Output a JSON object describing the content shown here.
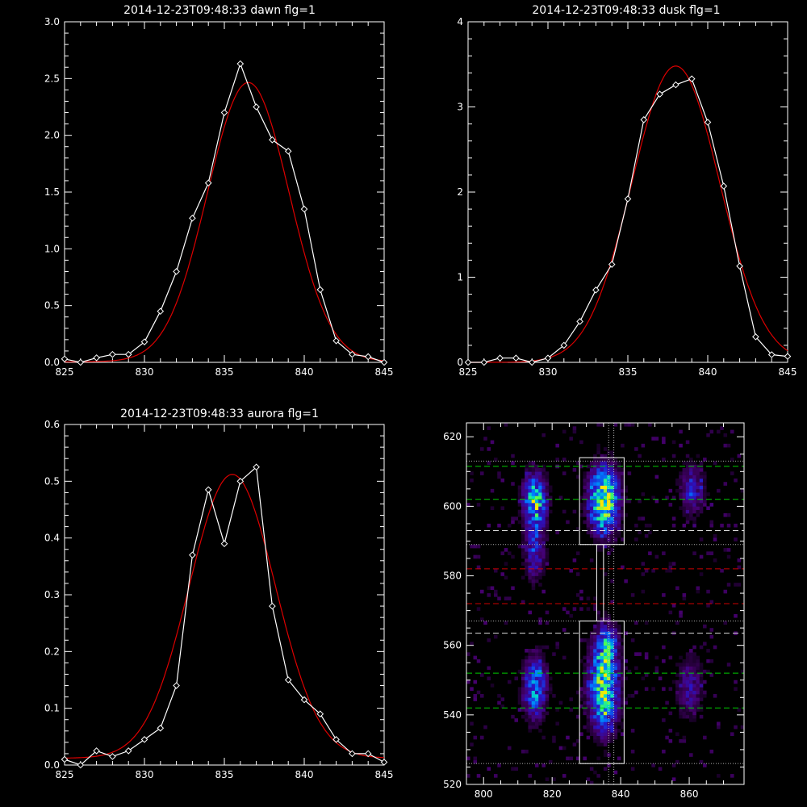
{
  "colors": {
    "background": "#000000",
    "axes": "#ffffff",
    "data": "#ffffff",
    "fit": "#dd0000",
    "green_line": "#00cc00",
    "red_line": "#cc0000"
  },
  "chart_data": [
    {
      "type": "line",
      "title": "2014-12-23T09:48:33 dawn flg=1",
      "xlim": [
        825,
        845
      ],
      "ylim": [
        0,
        3.0
      ],
      "xticks": [
        "825",
        "830",
        "835",
        "840",
        "845"
      ],
      "yticks": [
        "0.0",
        "0.5",
        "1.0",
        "1.5",
        "2.0",
        "2.5",
        "3.0"
      ],
      "series": [
        {
          "role": "data",
          "marker": "diamond",
          "x": [
            825,
            826,
            827,
            828,
            829,
            830,
            831,
            832,
            833,
            834,
            835,
            836,
            837,
            838,
            839,
            840,
            841,
            842,
            843,
            844,
            845
          ],
          "y": [
            0.03,
            0.0,
            0.04,
            0.07,
            0.07,
            0.18,
            0.45,
            0.8,
            1.27,
            1.58,
            2.2,
            2.63,
            2.25,
            1.96,
            1.86,
            1.35,
            0.64,
            0.19,
            0.07,
            0.05,
            0.0
          ]
        },
        {
          "role": "fit",
          "x0": 836.5,
          "sigma": 2.55,
          "amplitude": 2.46,
          "baseline": 0.005
        }
      ]
    },
    {
      "type": "line",
      "title": "2014-12-23T09:48:33 dusk flg=1",
      "xlim": [
        825,
        845
      ],
      "ylim": [
        0,
        4
      ],
      "xticks": [
        "825",
        "830",
        "835",
        "840",
        "845"
      ],
      "yticks": [
        "0",
        "1",
        "2",
        "3",
        "4"
      ],
      "series": [
        {
          "role": "data",
          "marker": "diamond",
          "x": [
            825,
            826,
            827,
            828,
            829,
            830,
            831,
            832,
            833,
            834,
            835,
            836,
            837,
            838,
            839,
            840,
            841,
            842,
            843,
            844,
            845
          ],
          "y": [
            0.0,
            0.0,
            0.05,
            0.05,
            0.0,
            0.05,
            0.2,
            0.48,
            0.85,
            1.15,
            1.92,
            2.85,
            3.15,
            3.26,
            3.33,
            2.82,
            2.07,
            1.13,
            0.3,
            0.09,
            0.07
          ]
        },
        {
          "role": "fit",
          "x0": 838.0,
          "sigma": 2.75,
          "amplitude": 3.48,
          "baseline": 0.0
        }
      ]
    },
    {
      "type": "line",
      "title": "2014-12-23T09:48:33 aurora flg=1",
      "xlim": [
        825,
        845
      ],
      "ylim": [
        0,
        0.6
      ],
      "xticks": [
        "825",
        "830",
        "835",
        "840",
        "845"
      ],
      "yticks": [
        "0.0",
        "0.1",
        "0.2",
        "0.3",
        "0.4",
        "0.5",
        "0.6"
      ],
      "series": [
        {
          "role": "data",
          "marker": "diamond",
          "x": [
            825,
            826,
            827,
            828,
            829,
            830,
            831,
            832,
            833,
            834,
            835,
            836,
            837,
            838,
            839,
            840,
            841,
            842,
            843,
            844,
            845
          ],
          "y": [
            0.01,
            0.0,
            0.025,
            0.015,
            0.025,
            0.045,
            0.065,
            0.14,
            0.37,
            0.485,
            0.39,
            0.5,
            0.525,
            0.28,
            0.15,
            0.115,
            0.09,
            0.045,
            0.02,
            0.02,
            0.005
          ]
        },
        {
          "role": "fit",
          "x0": 835.5,
          "sigma": 2.7,
          "amplitude": 0.5,
          "baseline": 0.012
        }
      ]
    },
    {
      "type": "heatmap",
      "xlim": [
        795,
        876
      ],
      "ylim": [
        520,
        624
      ],
      "xticks": [
        "800",
        "820",
        "840",
        "860"
      ],
      "yticks": [
        "520",
        "540",
        "560",
        "580",
        "600",
        "620"
      ],
      "blobs": [
        {
          "x": 815,
          "y": 602,
          "sx": 2.2,
          "sy": 5,
          "amp": 0.7
        },
        {
          "x": 815,
          "y": 588,
          "sx": 2.0,
          "sy": 6,
          "amp": 0.35
        },
        {
          "x": 835,
          "y": 602,
          "sx": 2.8,
          "sy": 6,
          "amp": 1.0
        },
        {
          "x": 861,
          "y": 605,
          "sx": 2.5,
          "sy": 5,
          "amp": 0.3
        },
        {
          "x": 815,
          "y": 548,
          "sx": 2.2,
          "sy": 6,
          "amp": 0.55
        },
        {
          "x": 835,
          "y": 548,
          "sx": 2.8,
          "sy": 8,
          "amp": 0.85
        },
        {
          "x": 836,
          "y": 560,
          "sx": 2.0,
          "sy": 4,
          "amp": 0.4
        },
        {
          "x": 860,
          "y": 548,
          "sx": 2.5,
          "sy": 6,
          "amp": 0.25
        }
      ],
      "boxes": [
        {
          "x0": 828,
          "x1": 841,
          "y0": 589,
          "y1": 614
        },
        {
          "x0": 828,
          "x1": 841,
          "y0": 526,
          "y1": 567
        }
      ],
      "connector": {
        "x0": 833,
        "x1": 835,
        "y0": 567,
        "y1": 589
      },
      "hlines": [
        {
          "y": 613,
          "color": "#aaaaaa",
          "style": "dotted"
        },
        {
          "y": 611.5,
          "color": "#00cc00",
          "style": "dashed"
        },
        {
          "y": 602,
          "color": "#00cc00",
          "style": "dashed"
        },
        {
          "y": 593,
          "color": "#dddddd",
          "style": "dashed"
        },
        {
          "y": 589,
          "color": "#aaaaaa",
          "style": "dotted"
        },
        {
          "y": 582,
          "color": "#cc0000",
          "style": "dashed"
        },
        {
          "y": 572,
          "color": "#cc0000",
          "style": "dashed"
        },
        {
          "y": 567,
          "color": "#aaaaaa",
          "style": "dotted"
        },
        {
          "y": 563.5,
          "color": "#dddddd",
          "style": "dashed"
        },
        {
          "y": 552,
          "color": "#00cc00",
          "style": "dashed"
        },
        {
          "y": 542,
          "color": "#00cc00",
          "style": "dashed"
        },
        {
          "y": 526,
          "color": "#aaaaaa",
          "style": "dotted"
        }
      ],
      "vlines": [
        {
          "x": 836.5,
          "color": "#bbbbbb",
          "style": "dotted"
        },
        {
          "x": 838,
          "color": "#bbbbbb",
          "style": "dotted"
        }
      ]
    }
  ]
}
